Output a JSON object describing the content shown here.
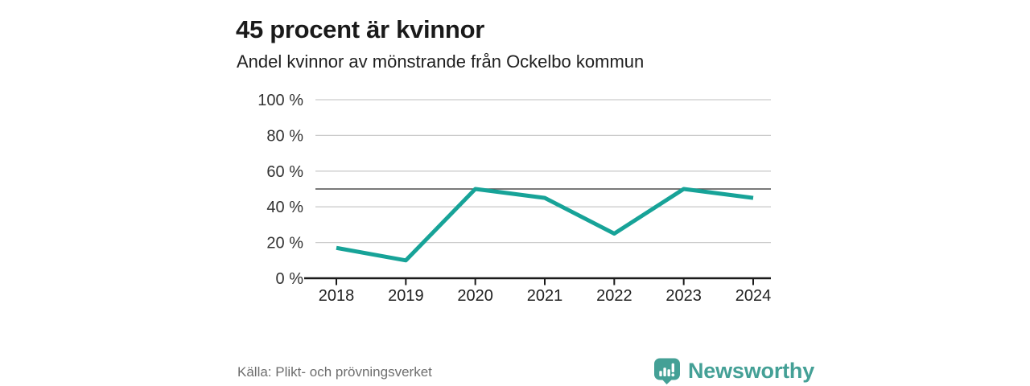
{
  "header": {
    "title": "45 procent är kvinnor",
    "subtitle": "Andel kvinnor av mönstrande från Ockelbo kommun"
  },
  "chart_data": {
    "type": "line",
    "title": "45 procent är kvinnor",
    "subtitle": "Andel kvinnor av mönstrande från Ockelbo kommun",
    "x": [
      "2018",
      "2019",
      "2020",
      "2021",
      "2022",
      "2023",
      "2024"
    ],
    "series": [
      {
        "name": "Andel kvinnor av mönstrande",
        "values": [
          17,
          10,
          50,
          45,
          25,
          50,
          45
        ],
        "color": "#17a398"
      }
    ],
    "unit": "%",
    "xlabel": "",
    "ylabel": "",
    "ylim": [
      0,
      100
    ],
    "yticks": [
      0,
      20,
      40,
      60,
      80,
      100
    ],
    "ytick_suffix": " %",
    "reference_line": {
      "value": 50,
      "color": "#4d4d4d"
    },
    "grid": true,
    "gridline_color": "#cccccc",
    "axis_color": "#1a1a1a",
    "ytick_label_color": "#333333",
    "xtick_label_color": "#222222",
    "legend_position": "none"
  },
  "footer": {
    "source": "Källa: Plikt- och prövningsverket",
    "brand": "Newsworthy",
    "brand_color": "#44a096",
    "logo_icon": "bar-chart-speech-bubble"
  }
}
